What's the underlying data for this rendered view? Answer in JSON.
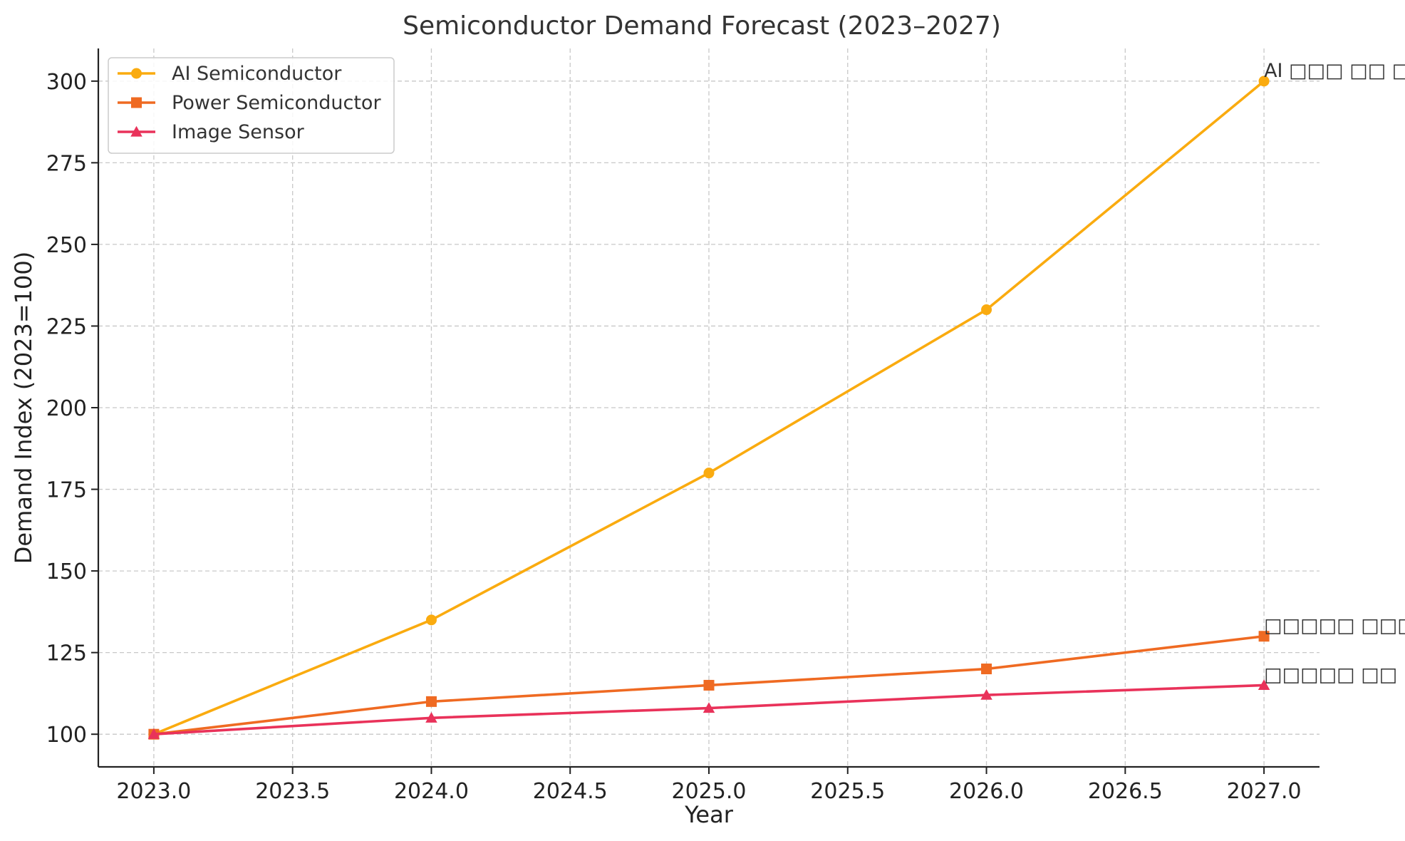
{
  "chart_data": {
    "type": "line",
    "title": "Semiconductor Demand Forecast (2023–2027)",
    "xlabel": "Year",
    "ylabel": "Demand Index (2023=100)",
    "x": [
      2023,
      2024,
      2025,
      2026,
      2027
    ],
    "xlim": [
      2022.8,
      2027.2
    ],
    "ylim": [
      90,
      310
    ],
    "x_ticks": [
      2023.0,
      2023.5,
      2024.0,
      2024.5,
      2025.0,
      2025.5,
      2026.0,
      2026.5,
      2027.0
    ],
    "x_tick_labels": [
      "2023.0",
      "2023.5",
      "2024.0",
      "2024.5",
      "2025.0",
      "2025.5",
      "2026.0",
      "2026.5",
      "2027.0"
    ],
    "y_ticks": [
      100,
      125,
      150,
      175,
      200,
      225,
      250,
      275,
      300
    ],
    "y_tick_labels": [
      "100",
      "125",
      "150",
      "175",
      "200",
      "225",
      "250",
      "275",
      "300"
    ],
    "grid": true,
    "legend_position": "top-left",
    "series": [
      {
        "name": "AI Semiconductor",
        "values": [
          100,
          135,
          180,
          230,
          300
        ],
        "color": "#FAAB0F",
        "marker": "circle"
      },
      {
        "name": "Power Semiconductor",
        "values": [
          100,
          110,
          115,
          120,
          130
        ],
        "color": "#EF6A22",
        "marker": "square"
      },
      {
        "name": "Image Sensor",
        "values": [
          100,
          105,
          108,
          112,
          115
        ],
        "color": "#E9325A",
        "marker": "triangle"
      }
    ],
    "annotations": [
      {
        "text": "AI □□□ □□ □□",
        "x": 2027,
        "y": 300
      },
      {
        "text": "□□□□□ □□□ □□",
        "x": 2027,
        "y": 130
      },
      {
        "text": "□□□□□ □□ □□",
        "x": 2027,
        "y": 115
      }
    ]
  }
}
